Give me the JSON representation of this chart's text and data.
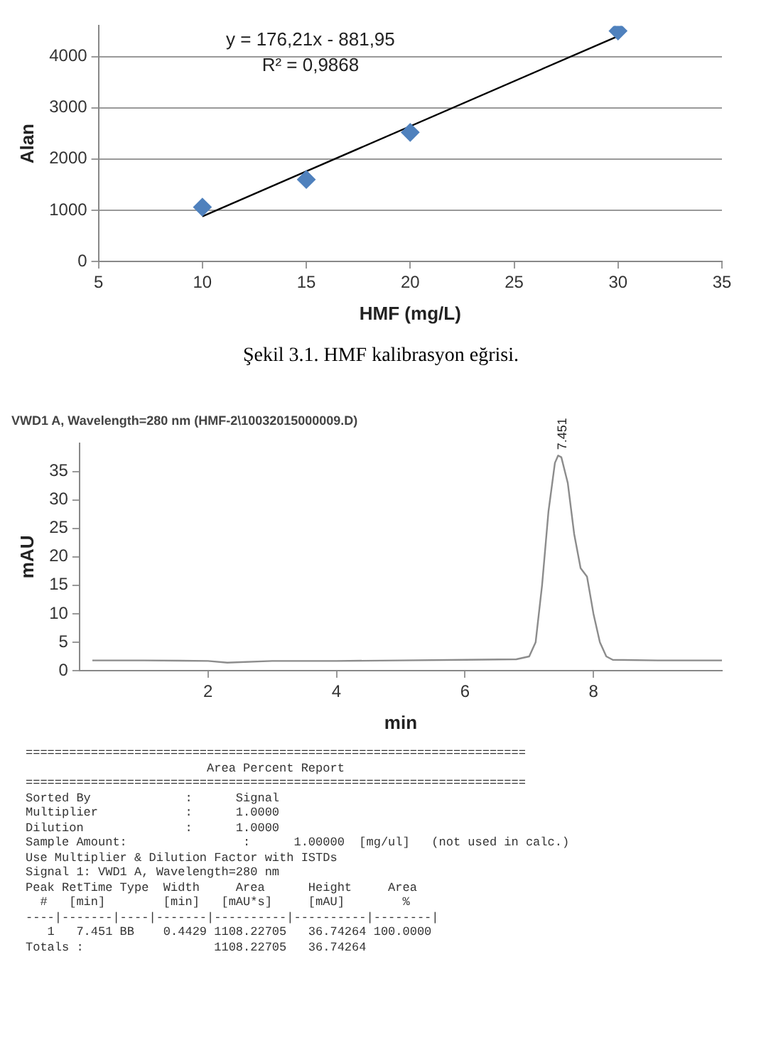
{
  "chart_data": [
    {
      "type": "scatter",
      "title": "Şekil 3.1. HMF kalibrasyon eğrisi.",
      "xlabel": "HMF (mg/L)",
      "ylabel": "Alan",
      "xlim": [
        5,
        35
      ],
      "xticks": [
        5,
        10,
        15,
        20,
        25,
        30,
        35
      ],
      "ylim": [
        0,
        4600
      ],
      "yticks": [
        0,
        1000,
        2000,
        3000,
        4000
      ],
      "grid": "y",
      "legend": false,
      "series": [
        {
          "type": "scatter",
          "marker": "diamond",
          "color": "#4f81bd",
          "x": [
            10,
            15,
            20,
            30
          ],
          "values": [
            1060,
            1600,
            2520,
            4500
          ]
        },
        {
          "type": "line",
          "color": "#000000",
          "x": [
            10,
            30
          ],
          "values": [
            880,
            4400
          ]
        }
      ],
      "annotations": [
        "y = 176,21x - 881,95",
        "R² = 0,9868"
      ]
    },
    {
      "type": "line",
      "title": "VWD1 A, Wavelength=280 nm (HMF-2\\10032015000009.D)",
      "xlabel": "min",
      "ylabel": "mAU",
      "xlim": [
        0,
        10
      ],
      "xticks": [
        2,
        4,
        6,
        8
      ],
      "ylim": [
        0,
        40
      ],
      "yticks": [
        0,
        5,
        10,
        15,
        20,
        25,
        30,
        35
      ],
      "grid": false,
      "legend": false,
      "series": [
        {
          "color": "#8c8c8c",
          "x": [
            0.2,
            1,
            2,
            2.3,
            3,
            4,
            5,
            6,
            6.8,
            7.0,
            7.1,
            7.2,
            7.3,
            7.4,
            7.45,
            7.5,
            7.6,
            7.7,
            7.8,
            7.9,
            8.0,
            8.1,
            8.2,
            8.3,
            9,
            10
          ],
          "values": [
            1.8,
            1.8,
            1.7,
            1.4,
            1.7,
            1.7,
            1.8,
            1.9,
            2.0,
            2.5,
            5,
            15,
            28,
            36.5,
            37.8,
            37.5,
            33,
            24,
            18,
            16.5,
            10,
            5,
            2.5,
            1.9,
            1.8,
            1.8
          ]
        }
      ],
      "annotations": [
        {
          "text": "7.451",
          "x": 7.451,
          "y": 37.8
        },
        "=====================================================================",
        "                         Area Percent Report",
        "=====================================================================",
        "Sorted By             :      Signal",
        "Multiplier            :      1.0000",
        "Dilution              :      1.0000",
        "Sample Amount:                :      1.00000  [mg/ul]   (not used in calc.)",
        "Use Multiplier & Dilution Factor with ISTDs",
        "Signal 1: VWD1 A, Wavelength=280 nm",
        "Peak RetTime Type  Width     Area      Height     Area",
        "  #   [min]        [min]   [mAU*s]     [mAU]        %",
        "----|-------|----|-------|----------|----------|--------|",
        "   1   7.451 BB    0.4429 1108.22705   36.74264 100.0000",
        "Totals :                  1108.22705   36.74264"
      ]
    }
  ]
}
